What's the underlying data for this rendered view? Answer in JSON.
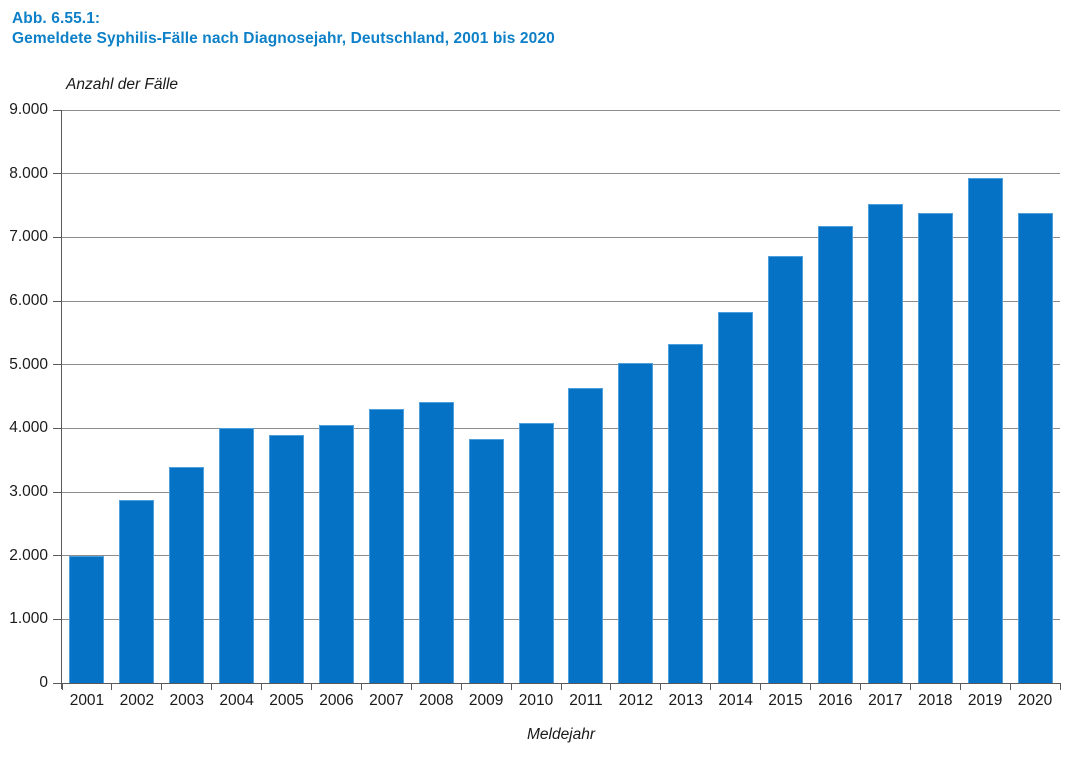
{
  "figure": {
    "label": "Abb. 6.55.1:",
    "title": "Gemeldete Syphilis-Fälle nach Diagnosejahr, Deutschland, 2001 bis 2020"
  },
  "colors": {
    "caption_blue": "#0D80C8",
    "bar_fill": "#0572C6",
    "bar_border": "#4E9FDB",
    "gridline": "#8C8C8C",
    "axis": "#595959",
    "text": "#1a1a1a"
  },
  "chart_data": {
    "type": "bar",
    "title": "Gemeldete Syphilis-Fälle nach Diagnosejahr, Deutschland, 2001 bis 2020",
    "xlabel": "Meldejahr",
    "ylabel": "Anzahl der Fälle",
    "categories": [
      "2001",
      "2002",
      "2003",
      "2004",
      "2005",
      "2006",
      "2007",
      "2008",
      "2009",
      "2010",
      "2011",
      "2012",
      "2013",
      "2014",
      "2015",
      "2016",
      "2017",
      "2018",
      "2019",
      "2020"
    ],
    "values": [
      2000,
      2880,
      3390,
      4000,
      3900,
      4050,
      4300,
      4410,
      3830,
      4080,
      4630,
      5020,
      5330,
      5830,
      6710,
      7180,
      7520,
      7390,
      7940,
      7390
    ],
    "ylim": [
      0,
      9000
    ],
    "ytick_step": 1000,
    "ytick_labels": [
      "0",
      "1.000",
      "2.000",
      "3.000",
      "4.000",
      "5.000",
      "6.000",
      "7.000",
      "8.000",
      "9.000"
    ],
    "grid": true,
    "legend": false
  }
}
